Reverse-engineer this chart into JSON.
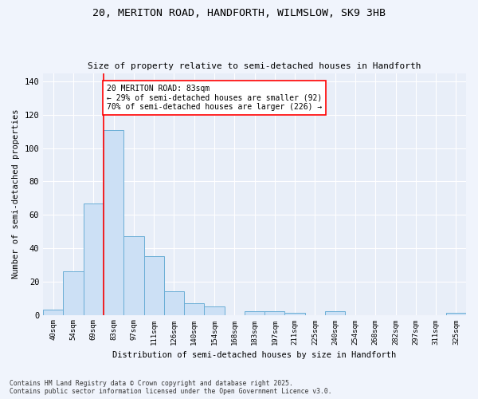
{
  "title_line1": "20, MERITON ROAD, HANDFORTH, WILMSLOW, SK9 3HB",
  "title_line2": "Size of property relative to semi-detached houses in Handforth",
  "categories": [
    "40sqm",
    "54sqm",
    "69sqm",
    "83sqm",
    "97sqm",
    "111sqm",
    "126sqm",
    "140sqm",
    "154sqm",
    "168sqm",
    "183sqm",
    "197sqm",
    "211sqm",
    "225sqm",
    "240sqm",
    "254sqm",
    "268sqm",
    "282sqm",
    "297sqm",
    "311sqm",
    "325sqm"
  ],
  "values": [
    3,
    26,
    67,
    111,
    47,
    35,
    14,
    7,
    5,
    0,
    2,
    2,
    1,
    0,
    2,
    0,
    0,
    0,
    0,
    0,
    1
  ],
  "bar_color": "#cce0f5",
  "bar_edge_color": "#6aaed6",
  "red_line_index": 3,
  "ylabel": "Number of semi-detached properties",
  "xlabel": "Distribution of semi-detached houses by size in Handforth",
  "ylim": [
    0,
    145
  ],
  "yticks": [
    0,
    20,
    40,
    60,
    80,
    100,
    120,
    140
  ],
  "annotation_title": "20 MERITON ROAD: 83sqm",
  "annotation_line1": "← 29% of semi-detached houses are smaller (92)",
  "annotation_line2": "70% of semi-detached houses are larger (226) →",
  "footer_line1": "Contains HM Land Registry data © Crown copyright and database right 2025.",
  "footer_line2": "Contains public sector information licensed under the Open Government Licence v3.0.",
  "bg_color": "#f0f4fc",
  "plot_bg_color": "#e8eef8"
}
